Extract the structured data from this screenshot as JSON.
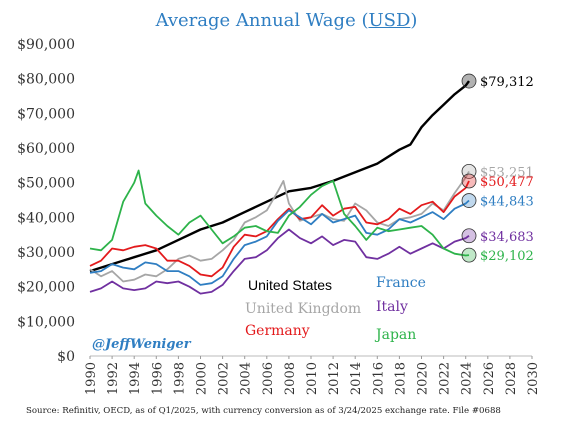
{
  "chart_data": {
    "type": "line",
    "title": "Average Annual Wage (",
    "title_unit": "USD",
    "title_close": ")",
    "xlabel": "",
    "ylabel": "",
    "xlim": [
      1990,
      2030
    ],
    "ylim": [
      0,
      90000
    ],
    "x_ticks": [
      "1990",
      "1992",
      "1994",
      "1996",
      "1998",
      "2000",
      "2002",
      "2004",
      "2006",
      "2008",
      "2010",
      "2012",
      "2014",
      "2016",
      "2018",
      "2020",
      "2022",
      "2024",
      "2026",
      "2028",
      "2030"
    ],
    "y_ticks": [
      "$0",
      "$10,000",
      "$20,000",
      "$30,000",
      "$40,000",
      "$50,000",
      "$60,000",
      "$70,000",
      "$80,000",
      "$90,000"
    ],
    "grid": false,
    "legend_placement": "center-bottom",
    "watermark": "@JeffWeniger",
    "source_note": "Source: Refinitiv, OECD, as of Q1/2025, with currency conversion as of 3/24/2025 exchange rate. File #0688",
    "series": [
      {
        "name": "United States",
        "color": "#000000",
        "end_label": "$79,312",
        "x": [
          1990,
          1992,
          1994,
          1996,
          1998,
          2000,
          2002,
          2004,
          2006,
          2008,
          2010,
          2012,
          2014,
          2016,
          2018,
          2019,
          2020,
          2021,
          2022,
          2023,
          2024,
          2024.3
        ],
        "y": [
          24500,
          26500,
          28500,
          30500,
          33500,
          36500,
          38500,
          41500,
          44500,
          47500,
          48500,
          50500,
          53000,
          55500,
          59500,
          61000,
          66000,
          69500,
          72500,
          75500,
          78000,
          79312
        ]
      },
      {
        "name": "United Kingdom",
        "color": "#a6a6a6",
        "end_label": "$53,251",
        "x": [
          1990,
          1991,
          1992,
          1993,
          1994,
          1995,
          1996,
          1997,
          1998,
          1999,
          2000,
          2001,
          2002,
          2003,
          2004,
          2005,
          2006,
          2007,
          2007.5,
          2008,
          2009,
          2010,
          2011,
          2012,
          2013,
          2014,
          2015,
          2016,
          2017,
          2018,
          2019,
          2020,
          2021,
          2022,
          2023,
          2024,
          2024.3
        ],
        "y": [
          25000,
          23000,
          24500,
          21500,
          22000,
          23500,
          23000,
          25000,
          28000,
          29000,
          27500,
          28000,
          30500,
          33500,
          38500,
          40000,
          42000,
          47500,
          50500,
          44000,
          39000,
          40000,
          41000,
          39500,
          39000,
          44000,
          42000,
          38500,
          37500,
          39500,
          40000,
          41000,
          44000,
          42000,
          47000,
          51500,
          53251
        ]
      },
      {
        "name": "Germany",
        "color": "#e31a1c",
        "end_label": "$50,477",
        "x": [
          1990,
          1991,
          1992,
          1993,
          1994,
          1995,
          1996,
          1997,
          1998,
          1999,
          2000,
          2001,
          2002,
          2003,
          2004,
          2005,
          2006,
          2007,
          2008,
          2009,
          2010,
          2011,
          2012,
          2013,
          2014,
          2015,
          2016,
          2017,
          2018,
          2019,
          2020,
          2021,
          2022,
          2023,
          2024,
          2024.3
        ],
        "y": [
          26000,
          27500,
          31000,
          30500,
          31500,
          32000,
          31000,
          27500,
          27500,
          26000,
          23500,
          23000,
          25500,
          31500,
          35000,
          34500,
          36000,
          39500,
          42500,
          39500,
          40000,
          43500,
          40500,
          42500,
          43000,
          38500,
          38000,
          39500,
          42500,
          41000,
          43500,
          44500,
          41500,
          46000,
          48500,
          50477
        ]
      },
      {
        "name": "France",
        "color": "#2f7ec2",
        "end_label": "$44,843",
        "x": [
          1990,
          1991,
          1992,
          1993,
          1994,
          1995,
          1996,
          1997,
          1998,
          1999,
          2000,
          2001,
          2002,
          2003,
          2004,
          2005,
          2006,
          2007,
          2008,
          2009,
          2010,
          2011,
          2012,
          2013,
          2014,
          2015,
          2016,
          2017,
          2018,
          2019,
          2020,
          2021,
          2022,
          2023,
          2024,
          2024.3
        ],
        "y": [
          24000,
          24500,
          26500,
          25500,
          25000,
          27000,
          26500,
          24500,
          24500,
          23000,
          20500,
          21000,
          23000,
          28000,
          32000,
          33000,
          34500,
          39000,
          42000,
          40000,
          38000,
          41000,
          38500,
          39500,
          40500,
          35500,
          35000,
          36500,
          39500,
          38500,
          40000,
          41500,
          39500,
          42500,
          44000,
          44843
        ]
      },
      {
        "name": "Italy",
        "color": "#7030a0",
        "end_label": "$34,683",
        "x": [
          1990,
          1991,
          1992,
          1993,
          1994,
          1995,
          1996,
          1997,
          1998,
          1999,
          2000,
          2001,
          2002,
          2003,
          2004,
          2005,
          2006,
          2007,
          2008,
          2009,
          2010,
          2011,
          2012,
          2013,
          2014,
          2015,
          2016,
          2017,
          2018,
          2019,
          2020,
          2021,
          2022,
          2023,
          2024,
          2024.3
        ],
        "y": [
          18500,
          19500,
          21500,
          19500,
          19000,
          19500,
          21500,
          21000,
          21500,
          20000,
          18000,
          18500,
          20500,
          24500,
          28000,
          28500,
          30500,
          34000,
          36500,
          34000,
          32500,
          34500,
          32000,
          33500,
          33000,
          28500,
          28000,
          29500,
          31500,
          29500,
          31000,
          32500,
          31000,
          33000,
          34000,
          34683
        ]
      },
      {
        "name": "Japan",
        "color": "#2db34a",
        "end_label": "$29,102",
        "x": [
          1990,
          1991,
          1992,
          1993,
          1994,
          1994.4,
          1995,
          1996,
          1997,
          1998,
          1999,
          2000,
          2001,
          2002,
          2003,
          2004,
          2005,
          2006,
          2007,
          2008,
          2009,
          2010,
          2011,
          2012,
          2013,
          2014,
          2015,
          2016,
          2017,
          2018,
          2019,
          2020,
          2021,
          2022,
          2023,
          2024,
          2024.3
        ],
        "y": [
          31000,
          30500,
          33500,
          44500,
          50000,
          53500,
          44000,
          40500,
          37500,
          35000,
          38500,
          40500,
          36500,
          32500,
          34500,
          37000,
          37500,
          36000,
          35500,
          40500,
          43000,
          46500,
          49000,
          50500,
          41000,
          37500,
          33500,
          37000,
          36000,
          36500,
          37000,
          37500,
          35000,
          31000,
          29500,
          29000,
          29102
        ]
      }
    ],
    "legend": [
      {
        "label": "United States",
        "color": "#000000"
      },
      {
        "label": "France",
        "color": "#2f7ec2"
      },
      {
        "label": "United Kingdom",
        "color": "#a6a6a6"
      },
      {
        "label": "Italy",
        "color": "#7030a0"
      },
      {
        "label": "Germany",
        "color": "#e31a1c"
      },
      {
        "label": "Japan",
        "color": "#2db34a"
      }
    ]
  }
}
